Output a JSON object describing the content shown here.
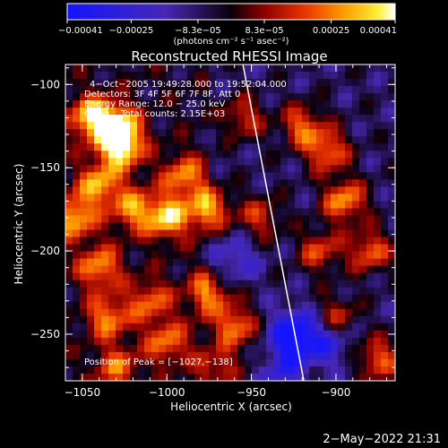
{
  "chart_data": {
    "type": "heatmap",
    "title": "Reconstructed RHESSI Image",
    "xlabel": "Heliocentric X (arcsec)",
    "ylabel": "Heliocentric Y (arcsec)",
    "xlim": [
      -1060,
      -865
    ],
    "ylim": [
      -278,
      -88
    ],
    "x_ticks": [
      -1050,
      -1000,
      -950,
      -900
    ],
    "y_ticks": [
      -100,
      -150,
      -200,
      -250
    ],
    "x_tick_labels": [
      "−1050",
      "−1000",
      "−950",
      "−900"
    ],
    "y_tick_labels": [
      "−100",
      "−150",
      "−200",
      "−250"
    ],
    "limb_line": [
      [
        -955,
        -88
      ],
      [
        -919,
        -278
      ]
    ],
    "colorbar": {
      "range": [
        -0.00041,
        0.00041
      ],
      "tick_values": [
        -0.00041,
        -0.00025,
        -8.3e-05,
        8.3e-05,
        0.00025,
        0.00041
      ],
      "tick_labels": [
        "−0.00041",
        "−0.00025",
        "−8.3e−05",
        "8.3e−05",
        "0.00025",
        "0.00041"
      ],
      "unit_label": "(photons cm⁻² s⁻¹ asec⁻²)"
    },
    "annotations": {
      "time_range": "4−Oct−2005 19:49:28.000 to 19:52:04.000",
      "detectors": "Detectors: 3F 4F 5F 6F 7F 8F, Att 0",
      "energy": "Energy Range: 12.0 − 25.0 keV",
      "clean": "Clean    Total counts: 2.15E+03",
      "peak": "Position of Peak = [−1027,−138]"
    },
    "hot_spots": [
      {
        "x": -1045,
        "y": -120,
        "v": 0.9
      },
      {
        "x": -1030,
        "y": -125,
        "v": 1.0
      },
      {
        "x": -1040,
        "y": -160,
        "v": 0.8
      },
      {
        "x": -1055,
        "y": -180,
        "v": 0.85
      },
      {
        "x": -1020,
        "y": -175,
        "v": 0.7
      },
      {
        "x": -1000,
        "y": -180,
        "v": 0.9
      },
      {
        "x": -990,
        "y": -155,
        "v": 0.7
      },
      {
        "x": -975,
        "y": -175,
        "v": 0.85
      },
      {
        "x": -1040,
        "y": -210,
        "v": 0.75
      },
      {
        "x": -1010,
        "y": -230,
        "v": 0.6
      },
      {
        "x": -1035,
        "y": -240,
        "v": 0.7
      },
      {
        "x": -1000,
        "y": -255,
        "v": 0.65
      },
      {
        "x": -975,
        "y": -225,
        "v": 0.75
      },
      {
        "x": -960,
        "y": -245,
        "v": 0.8
      },
      {
        "x": -955,
        "y": -120,
        "v": 0.55
      },
      {
        "x": -945,
        "y": -180,
        "v": 0.55
      },
      {
        "x": -940,
        "y": -265,
        "v": 0.5
      },
      {
        "x": -920,
        "y": -125,
        "v": 0.7
      },
      {
        "x": -905,
        "y": -140,
        "v": 0.75
      },
      {
        "x": -895,
        "y": -170,
        "v": 0.85
      },
      {
        "x": -910,
        "y": -200,
        "v": 0.6
      },
      {
        "x": -880,
        "y": -200,
        "v": 0.7
      },
      {
        "x": -900,
        "y": -240,
        "v": 0.55
      },
      {
        "x": -875,
        "y": -265,
        "v": 0.7
      },
      {
        "x": -1030,
        "y": -270,
        "v": 0.6
      },
      {
        "x": -970,
        "y": -270,
        "v": 0.55
      },
      {
        "x": -1027,
        "y": -138,
        "v": 1.0
      }
    ],
    "cold_spots": [
      {
        "x": -925,
        "y": -250,
        "v": -0.9
      },
      {
        "x": -935,
        "y": -268,
        "v": -0.8
      },
      {
        "x": -905,
        "y": -255,
        "v": -0.5
      },
      {
        "x": -960,
        "y": -205,
        "v": -0.4
      }
    ]
  },
  "footer": {
    "timestamp": "2−May−2022 21:31"
  }
}
